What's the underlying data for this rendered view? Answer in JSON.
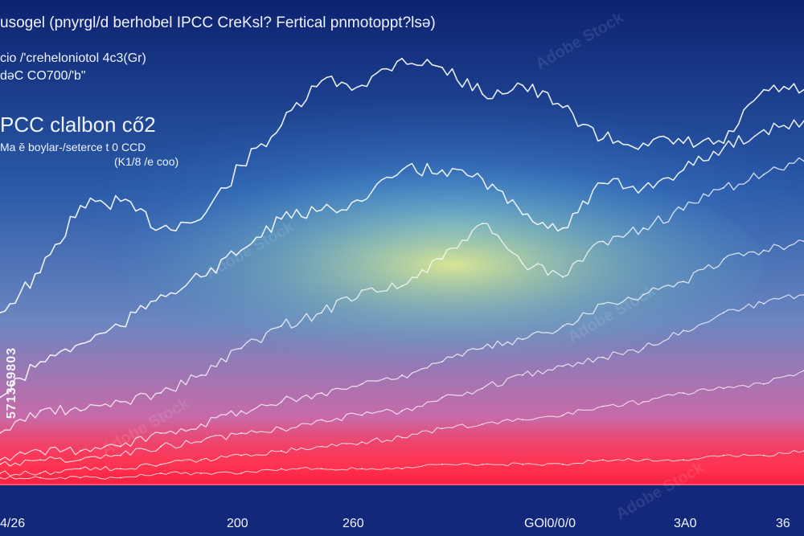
{
  "header": {
    "line1": "usogel (pnyrgl/d berhobel IPCC CreKsl? Fertical pnmotoppt?lsə)",
    "line2": "cio /'creheloniotol 4c3(Gr)",
    "line3": "dəC CO700/'b\"",
    "subtitle": "PCC clalbon cő2",
    "note1": "Ma ĕ boylar-/seterce t 0  CCD",
    "note2": "(K1/8 /e coo)"
  },
  "x_axis": {
    "ticks": [
      "4/26",
      "200",
      "260",
      "GOl0/0/0",
      "3A0",
      "36"
    ]
  },
  "stock_id": "571369803",
  "watermark": "Adobe Stock",
  "colors": {
    "bg_top": "#0d2270",
    "bg_bottom": "#13287a",
    "glow_yellow": "#e8f27a",
    "band_red": "#ff2a4a",
    "line": "#ffffff"
  },
  "chart_data": {
    "type": "line",
    "title": "PCC clalbon cő2",
    "xlabel": "",
    "ylabel": "",
    "x": [
      0,
      5,
      10,
      15,
      20,
      25,
      30,
      35,
      40,
      45,
      50,
      55,
      60,
      65,
      70,
      75,
      80,
      85,
      90,
      95,
      100
    ],
    "xlim": [
      0,
      100
    ],
    "ylim": [
      0,
      100
    ],
    "series": [
      {
        "values": [
          38,
          47,
          62,
          63,
          57,
          59,
          71,
          80,
          90,
          89,
          95,
          93,
          87,
          89,
          84,
          77,
          76,
          76,
          76,
          88,
          88
        ]
      },
      {
        "values": [
          19,
          27,
          31,
          35,
          42,
          46,
          52,
          59,
          61,
          63,
          70,
          70,
          68,
          60,
          57,
          67,
          66,
          70,
          75,
          79,
          81
        ]
      },
      {
        "values": [
          11,
          16,
          16,
          18,
          20,
          24,
          30,
          35,
          38,
          43,
          44,
          50,
          58,
          49,
          46,
          54,
          57,
          61,
          66,
          69,
          72
        ]
      },
      {
        "values": [
          5,
          7,
          7,
          8,
          11,
          13,
          16,
          18,
          20,
          22,
          24,
          27,
          30,
          32,
          35,
          40,
          42,
          45,
          50,
          52,
          54
        ]
      },
      {
        "values": [
          4,
          5,
          5,
          6,
          8,
          9,
          11,
          12,
          14,
          15,
          16,
          19,
          21,
          24,
          26,
          28,
          30,
          34,
          38,
          40,
          42
        ]
      },
      {
        "values": [
          2,
          2,
          3,
          3,
          4,
          5,
          6,
          7,
          8,
          9,
          10,
          12,
          13,
          14,
          15,
          17,
          18,
          20,
          21,
          22,
          25
        ]
      },
      {
        "values": [
          1,
          1,
          1,
          1,
          2,
          2,
          2,
          3,
          3,
          3,
          3,
          4,
          4,
          4,
          4,
          5,
          5,
          5,
          6,
          6,
          7
        ]
      }
    ]
  }
}
